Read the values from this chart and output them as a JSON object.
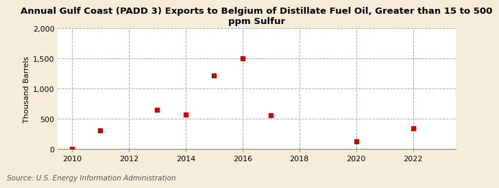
{
  "title": "Annual Gulf Coast (PADD 3) Exports to Belgium of Distillate Fuel Oil, Greater than 15 to 500\nppm Sulfur",
  "ylabel": "Thousand Barrels",
  "source": "Source: U.S. Energy Information Administration",
  "background_color": "#f5edd9",
  "plot_background_color": "#ffffff",
  "data_x": [
    2010,
    2011,
    2013,
    2014,
    2015,
    2016,
    2017,
    2020,
    2022
  ],
  "data_y": [
    0,
    305,
    648,
    573,
    1224,
    1501,
    557,
    130,
    340
  ],
  "marker_color": "#cc0000",
  "marker_size": 22,
  "xlim": [
    2009.5,
    2023.5
  ],
  "ylim": [
    0,
    2000
  ],
  "xticks": [
    2010,
    2012,
    2014,
    2016,
    2018,
    2020,
    2022
  ],
  "yticks": [
    0,
    500,
    1000,
    1500,
    2000
  ],
  "ytick_labels": [
    "0",
    "500",
    "1,000",
    "1,500",
    "2,000"
  ],
  "grid_color": "#aaaaaa",
  "grid_style": "--",
  "title_fontsize": 9.5,
  "axis_label_fontsize": 8,
  "tick_fontsize": 8,
  "source_fontsize": 7.5
}
